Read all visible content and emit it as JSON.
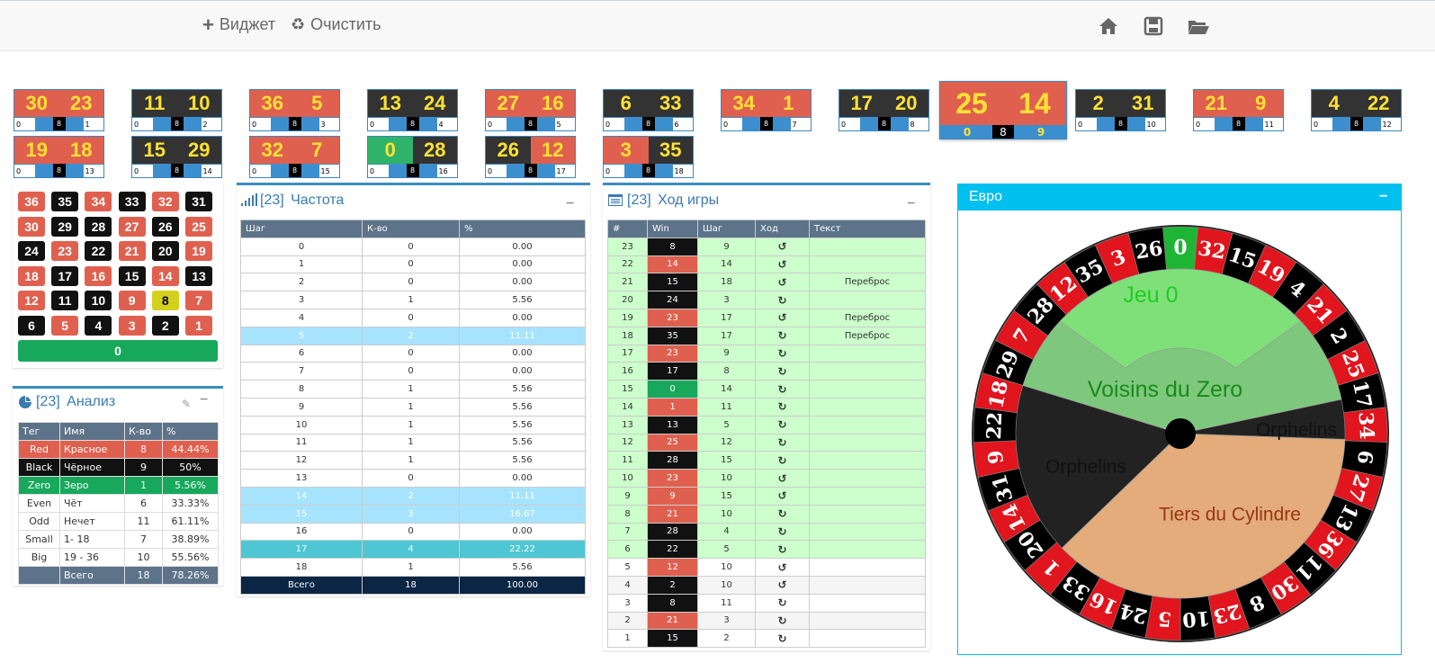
{
  "toolbar": {
    "widget_label": "Виджет",
    "clear_label": "Очистить"
  },
  "cards": [
    {
      "a": "30",
      "ac": "R",
      "b": "23",
      "bc": "R",
      "l": "0",
      "m": "8",
      "r": "1"
    },
    {
      "a": "11",
      "ac": "B",
      "b": "10",
      "bc": "B",
      "l": "0",
      "m": "8",
      "r": "2"
    },
    {
      "a": "36",
      "ac": "R",
      "b": "5",
      "bc": "R",
      "l": "0",
      "m": "8",
      "r": "3"
    },
    {
      "a": "13",
      "ac": "B",
      "b": "24",
      "bc": "B",
      "l": "0",
      "m": "8",
      "r": "4"
    },
    {
      "a": "27",
      "ac": "R",
      "b": "16",
      "bc": "R",
      "l": "0",
      "m": "8",
      "r": "5"
    },
    {
      "a": "6",
      "ac": "B",
      "b": "33",
      "bc": "B",
      "l": "0",
      "m": "8",
      "r": "6"
    },
    {
      "a": "34",
      "ac": "R",
      "b": "1",
      "bc": "R",
      "l": "0",
      "m": "8",
      "r": "7"
    },
    {
      "a": "17",
      "ac": "B",
      "b": "20",
      "bc": "B",
      "l": "0",
      "m": "8",
      "r": "8"
    },
    {
      "a": "25",
      "ac": "R",
      "b": "14",
      "bc": "R",
      "l": "0",
      "m": "8",
      "r": "9"
    },
    {
      "a": "2",
      "ac": "B",
      "b": "31",
      "bc": "B",
      "l": "0",
      "m": "8",
      "r": "10"
    },
    {
      "a": "21",
      "ac": "R",
      "b": "9",
      "bc": "R",
      "l": "0",
      "m": "8",
      "r": "11"
    },
    {
      "a": "4",
      "ac": "B",
      "b": "22",
      "bc": "B",
      "l": "0",
      "m": "8",
      "r": "12"
    },
    {
      "a": "19",
      "ac": "R",
      "b": "18",
      "bc": "R",
      "l": "0",
      "m": "8",
      "r": "13"
    },
    {
      "a": "15",
      "ac": "B",
      "b": "29",
      "bc": "B",
      "l": "0",
      "m": "8",
      "r": "14"
    },
    {
      "a": "32",
      "ac": "R",
      "b": "7",
      "bc": "R",
      "l": "0",
      "m": "8",
      "r": "15"
    },
    {
      "a": "0",
      "ac": "G",
      "b": "28",
      "bc": "B",
      "l": "0",
      "m": "8",
      "r": "16"
    },
    {
      "a": "26",
      "ac": "B",
      "b": "12",
      "bc": "R",
      "l": "0",
      "m": "8",
      "r": "17"
    },
    {
      "a": "3",
      "ac": "R",
      "b": "35",
      "bc": "B",
      "l": "0",
      "m": "8",
      "r": "18"
    }
  ],
  "board": {
    "rows": [
      [
        [
          "36",
          "R"
        ],
        [
          "35",
          "B"
        ],
        [
          "34",
          "R"
        ],
        [
          "33",
          "B"
        ],
        [
          "32",
          "R"
        ],
        [
          "31",
          "B"
        ]
      ],
      [
        [
          "30",
          "R"
        ],
        [
          "29",
          "B"
        ],
        [
          "28",
          "B"
        ],
        [
          "27",
          "R"
        ],
        [
          "26",
          "B"
        ],
        [
          "25",
          "R"
        ]
      ],
      [
        [
          "24",
          "B"
        ],
        [
          "23",
          "R"
        ],
        [
          "22",
          "B"
        ],
        [
          "21",
          "R"
        ],
        [
          "20",
          "B"
        ],
        [
          "19",
          "R"
        ]
      ],
      [
        [
          "18",
          "R"
        ],
        [
          "17",
          "B"
        ],
        [
          "16",
          "R"
        ],
        [
          "15",
          "B"
        ],
        [
          "14",
          "R"
        ],
        [
          "13",
          "B"
        ]
      ],
      [
        [
          "12",
          "R"
        ],
        [
          "11",
          "B"
        ],
        [
          "10",
          "B"
        ],
        [
          "9",
          "R"
        ],
        [
          "8",
          "Y"
        ],
        [
          "7",
          "R"
        ]
      ],
      [
        [
          "6",
          "B"
        ],
        [
          "5",
          "R"
        ],
        [
          "4",
          "B"
        ],
        [
          "3",
          "R"
        ],
        [
          "2",
          "B"
        ],
        [
          "1",
          "R"
        ]
      ]
    ],
    "zero": "0"
  },
  "analysis": {
    "count": "[23]",
    "title": "Анализ",
    "headers": [
      "Тег",
      "Имя",
      "К-во",
      "%"
    ],
    "rows": [
      {
        "tag": "Red",
        "name": "Красное",
        "qty": "8",
        "pct": "44.44%",
        "style": "red"
      },
      {
        "tag": "Black",
        "name": "Чёрное",
        "qty": "9",
        "pct": "50%",
        "style": "black"
      },
      {
        "tag": "Zero",
        "name": "Зеро",
        "qty": "1",
        "pct": "5.56%",
        "style": "zero"
      },
      {
        "tag": "Even",
        "name": "Чёт",
        "qty": "6",
        "pct": "33.33%",
        "style": ""
      },
      {
        "tag": "Odd",
        "name": "Нечет",
        "qty": "11",
        "pct": "61.11%",
        "style": ""
      },
      {
        "tag": "Small",
        "name": "1- 18",
        "qty": "7",
        "pct": "38.89%",
        "style": ""
      },
      {
        "tag": "Big",
        "name": "19 - 36",
        "qty": "10",
        "pct": "55.56%",
        "style": ""
      },
      {
        "tag": "",
        "name": "Всего",
        "qty": "18",
        "pct": "78.26%",
        "style": "total"
      }
    ]
  },
  "frequency": {
    "count": "[23]",
    "title": "Частота",
    "headers": [
      "Шаг",
      "К-во",
      "%"
    ],
    "rows": [
      [
        "0",
        "0",
        "0.00",
        ""
      ],
      [
        "1",
        "0",
        "0.00",
        ""
      ],
      [
        "2",
        "0",
        "0.00",
        ""
      ],
      [
        "3",
        "1",
        "5.56",
        ""
      ],
      [
        "4",
        "0",
        "0.00",
        ""
      ],
      [
        "5",
        "2",
        "11.11",
        "hl"
      ],
      [
        "6",
        "0",
        "0.00",
        ""
      ],
      [
        "7",
        "0",
        "0.00",
        ""
      ],
      [
        "8",
        "1",
        "5.56",
        ""
      ],
      [
        "9",
        "1",
        "5.56",
        ""
      ],
      [
        "10",
        "1",
        "5.56",
        ""
      ],
      [
        "11",
        "1",
        "5.56",
        ""
      ],
      [
        "12",
        "1",
        "5.56",
        ""
      ],
      [
        "13",
        "0",
        "0.00",
        ""
      ],
      [
        "14",
        "2",
        "11.11",
        "hl"
      ],
      [
        "15",
        "3",
        "16.67",
        "hl"
      ],
      [
        "16",
        "0",
        "0.00",
        ""
      ],
      [
        "17",
        "4",
        "22.22",
        "hl2"
      ],
      [
        "18",
        "1",
        "5.56",
        ""
      ]
    ],
    "total": [
      "Всего",
      "18",
      "100.00"
    ]
  },
  "history": {
    "count": "[23]",
    "title": "Ход игры",
    "headers": [
      "#",
      "Win",
      "Шаг",
      "Ход",
      "Текст"
    ],
    "rows": [
      [
        "23",
        "8",
        "B",
        "9",
        "ccw",
        ""
      ],
      [
        "22",
        "14",
        "R",
        "14",
        "ccw",
        ""
      ],
      [
        "21",
        "15",
        "B",
        "18",
        "ccw",
        "Переброс"
      ],
      [
        "20",
        "24",
        "B",
        "3",
        "cw",
        ""
      ],
      [
        "19",
        "23",
        "R",
        "17",
        "ccw",
        "Переброс"
      ],
      [
        "18",
        "35",
        "B",
        "17",
        "cw",
        "Переброс"
      ],
      [
        "17",
        "23",
        "R",
        "9",
        "cw",
        ""
      ],
      [
        "16",
        "17",
        "B",
        "8",
        "cw",
        ""
      ],
      [
        "15",
        "0",
        "G",
        "14",
        "cw",
        ""
      ],
      [
        "14",
        "1",
        "R",
        "11",
        "cw",
        ""
      ],
      [
        "13",
        "13",
        "B",
        "5",
        "cw",
        ""
      ],
      [
        "12",
        "25",
        "R",
        "12",
        "cw",
        ""
      ],
      [
        "11",
        "28",
        "B",
        "15",
        "cw",
        ""
      ],
      [
        "10",
        "23",
        "R",
        "10",
        "ccw",
        ""
      ],
      [
        "9",
        "9",
        "R",
        "15",
        "ccw",
        ""
      ],
      [
        "8",
        "21",
        "R",
        "10",
        "cw",
        ""
      ],
      [
        "7",
        "28",
        "B",
        "4",
        "cw",
        ""
      ],
      [
        "6",
        "22",
        "B",
        "5",
        "cw",
        ""
      ],
      [
        "5",
        "12",
        "R",
        "10",
        "ccw",
        ""
      ],
      [
        "4",
        "2",
        "B",
        "10",
        "ccw",
        ""
      ],
      [
        "3",
        "8",
        "B",
        "11",
        "cw",
        ""
      ],
      [
        "2",
        "21",
        "R",
        "3",
        "cw",
        ""
      ],
      [
        "1",
        "15",
        "B",
        "2",
        "cw",
        ""
      ]
    ],
    "green_count": 18
  },
  "euro": {
    "title": "Евро",
    "wheel": [
      "0",
      "32",
      "15",
      "19",
      "4",
      "21",
      "2",
      "25",
      "17",
      "34",
      "6",
      "27",
      "13",
      "36",
      "11",
      "30",
      "8",
      "23",
      "10",
      "5",
      "24",
      "16",
      "33",
      "1",
      "20",
      "14",
      "31",
      "9",
      "22",
      "18",
      "29",
      "7",
      "28",
      "12",
      "35",
      "3",
      "26"
    ],
    "sectors": {
      "jeu": "Jeu 0",
      "voisins": "Voisins du Zero",
      "orph1": "Orphelins",
      "orph2": "Orphelins",
      "tiers": "Tiers du Cylindre"
    }
  },
  "colors": {
    "red": "#e0604f",
    "black": "#111111",
    "green": "#2fb36a",
    "accent": "#3c8dbc"
  }
}
